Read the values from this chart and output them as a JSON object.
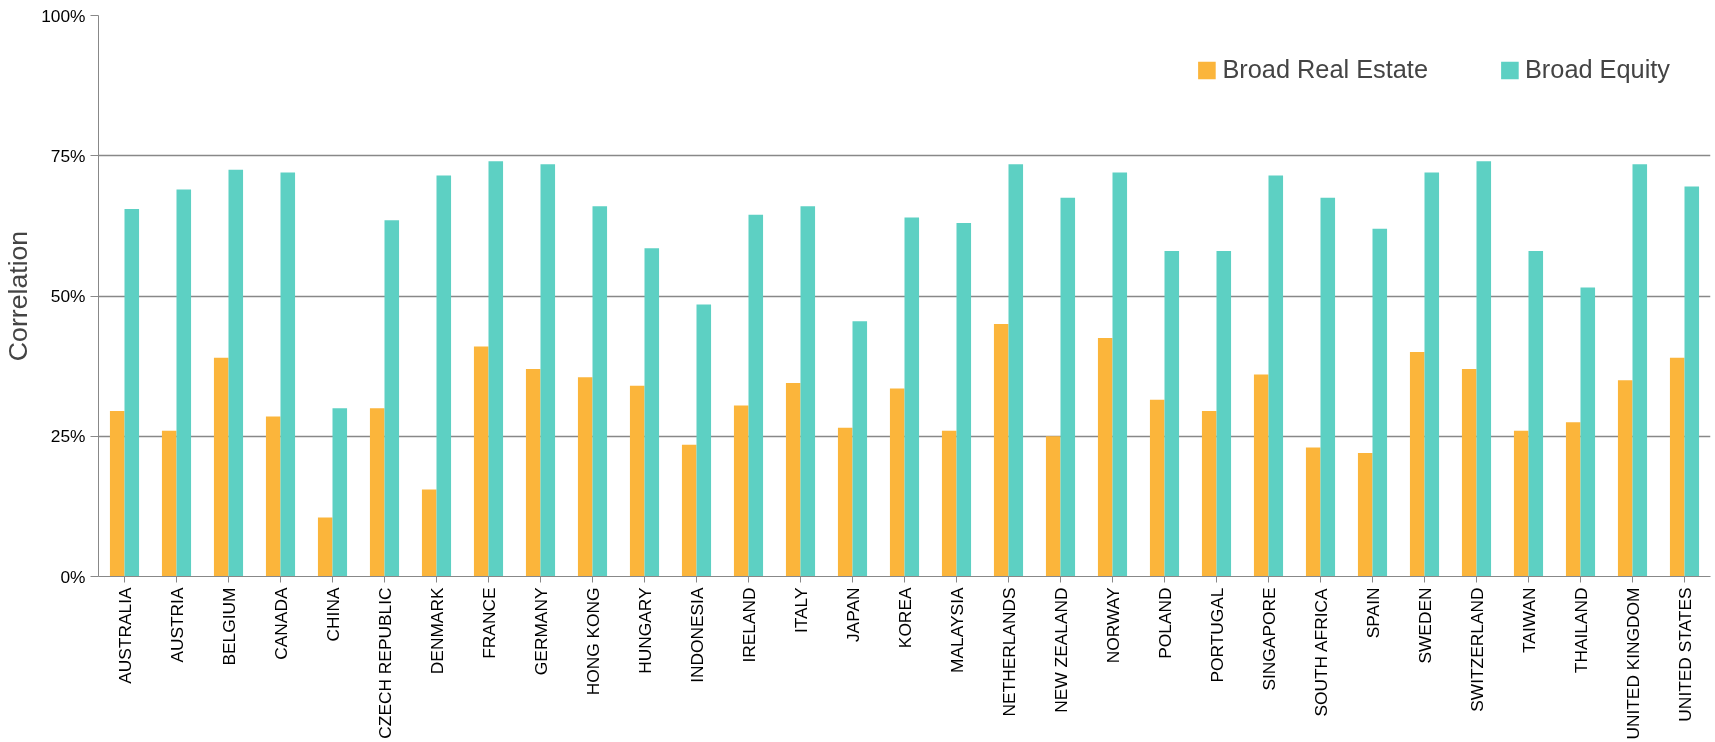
{
  "chart_data": {
    "type": "bar",
    "ylabel": "Correlation",
    "categories": [
      "AUSTRALIA",
      "AUSTRIA",
      "BELGIUM",
      "CANADA",
      "CHINA",
      "CZECH REPUBLIC",
      "DENMARK",
      "FRANCE",
      "GERMANY",
      "HONG KONG",
      "HUNGARY",
      "INDONESIA",
      "IRELAND",
      "ITALY",
      "JAPAN",
      "KOREA",
      "MALAYSIA",
      "NETHERLANDS",
      "NEW ZEALAND",
      "NORWAY",
      "POLAND",
      "PORTUGAL",
      "SINGAPORE",
      "SOUTH AFRICA",
      "SPAIN",
      "SWEDEN",
      "SWITZERLAND",
      "TAIWAN",
      "THAILAND",
      "UNITED KINGDOM",
      "UNITED STATES"
    ],
    "series": [
      {
        "name": "Broad Real Estate",
        "color": "#fbb53b",
        "values": [
          29.5,
          26,
          39,
          28.5,
          10.5,
          30,
          15.5,
          41,
          37,
          35.5,
          34,
          23.5,
          30.5,
          34.5,
          26.5,
          33.5,
          26,
          45,
          25,
          42.5,
          31.5,
          29.5,
          36,
          23,
          22,
          40,
          37,
          26,
          27.5,
          35,
          39
        ]
      },
      {
        "name": "Broad Equity",
        "color": "#5dd0c3",
        "values": [
          65.5,
          69,
          72.5,
          72,
          30,
          63.5,
          71.5,
          74,
          73.5,
          66,
          58.5,
          48.5,
          64.5,
          66,
          45.5,
          64,
          63,
          73.5,
          67.5,
          72,
          58,
          58,
          71.5,
          67.5,
          62,
          72,
          74,
          58,
          51.5,
          73.5,
          69.5
        ]
      }
    ],
    "ylim": [
      0,
      100
    ],
    "yticks": [
      {
        "value": 0,
        "label": "0%"
      },
      {
        "value": 25,
        "label": "25%"
      },
      {
        "value": 50,
        "label": "50%"
      },
      {
        "value": 75,
        "label": "75%"
      },
      {
        "value": 100,
        "label": "100%"
      }
    ],
    "grid": "y",
    "legend": "top right"
  }
}
